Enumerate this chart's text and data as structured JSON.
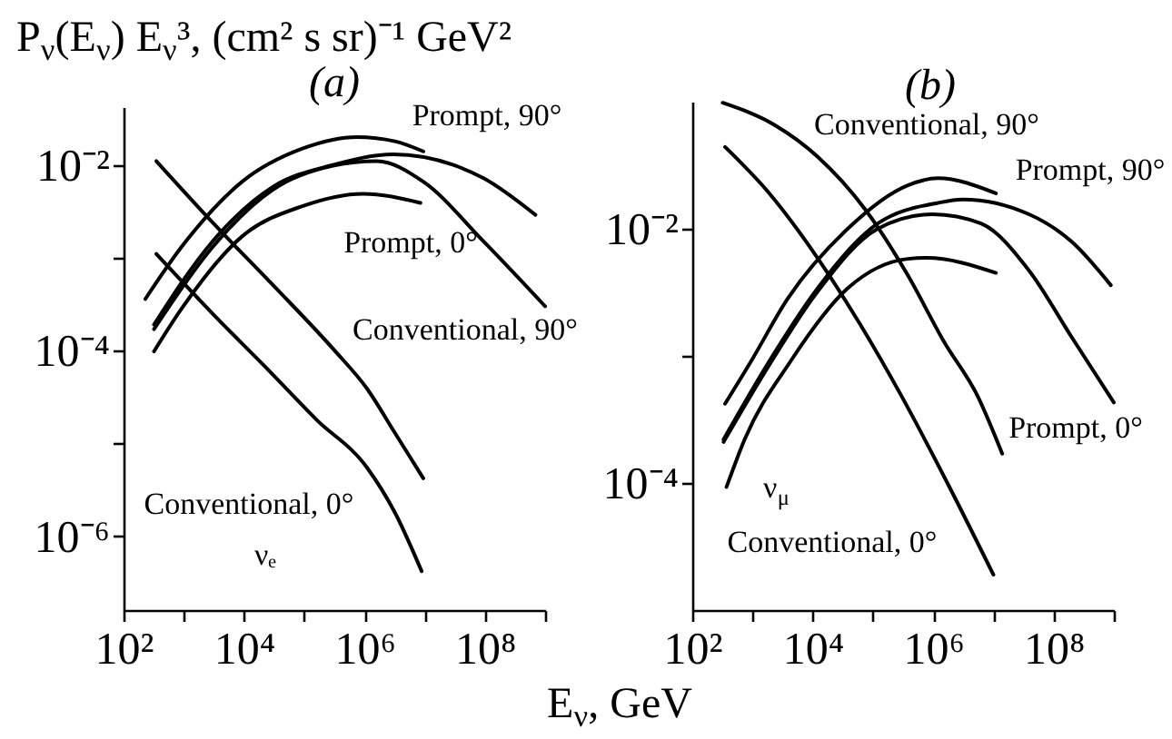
{
  "chart_data": [
    {
      "type": "line",
      "title": "(a)",
      "xlabel": "E$_{ν}$, GeV",
      "ylabel": "P$_{ν}$(E$_{ν}$) E$_{ν}$³, (cm² s sr)⁻¹ GeV²",
      "log": "xy",
      "xlim": [
        100,
        1000000000
      ],
      "ylim": [
        1.6e-07,
        0.042
      ],
      "xticks": [
        {
          "value": 100,
          "label": "10²"
        },
        {
          "value": 1000,
          "label": null
        },
        {
          "value": 10000,
          "label": "10⁴"
        },
        {
          "value": 100000,
          "label": null
        },
        {
          "value": 1000000,
          "label": "10⁶"
        },
        {
          "value": 10000000,
          "label": null
        },
        {
          "value": 100000000,
          "label": "10⁸"
        },
        {
          "value": 1000000000,
          "label": null
        }
      ],
      "yticks": [
        {
          "value": 0.01,
          "label": "10⁻²"
        },
        {
          "value": 0.001,
          "label": null
        },
        {
          "value": 0.0001,
          "label": "10⁻⁴"
        },
        {
          "value": 1e-05,
          "label": null
        },
        {
          "value": 1e-06,
          "label": "10⁻⁶"
        }
      ],
      "series": [
        {
          "color": "#000000",
          "x": [
            350,
            3200,
            32000,
            320000,
            1100000,
            3200000,
            9500000
          ],
          "values": [
            0.011,
            0.0023,
            0.00049,
            0.0001,
            3.9e-05,
            1.3e-05,
            4.2e-06
          ]
        },
        {
          "color": "#000000",
          "x": [
            350,
            3200,
            23000,
            160000,
            1100000,
            3200000,
            8900000
          ],
          "values": [
            0.0011,
            0.00024,
            6.6e-05,
            1.8e-05,
            5.5e-06,
            1.8e-06,
            4.2e-07
          ]
        },
        {
          "color": "#000000",
          "x": [
            230,
            910,
            9300,
            93000,
            760000,
            3200000,
            9500000
          ],
          "values": [
            0.00036,
            0.0013,
            0.0066,
            0.015,
            0.02,
            0.018,
            0.014
          ]
        },
        {
          "color": "#000000",
          "x": [
            320,
            3000,
            30000,
            300000,
            3000000,
            30000000,
            95000000,
            690000000
          ],
          "values": [
            0.00019,
            0.0015,
            0.0058,
            0.01,
            0.013,
            0.01,
            0.0072,
            0.0029
          ]
        },
        {
          "color": "#000000",
          "x": [
            320,
            3000,
            30000,
            300000,
            1600000,
            9500000,
            95000000,
            1000000000
          ],
          "values": [
            0.00017,
            0.0013,
            0.0054,
            0.0098,
            0.011,
            0.0066,
            0.0015,
            0.0003
          ]
        },
        {
          "color": "#000000",
          "x": [
            320,
            910,
            9300,
            93000,
            950000,
            8500000
          ],
          "values": [
            9.8e-05,
            0.00028,
            0.0017,
            0.0036,
            0.0049,
            0.0039
          ]
        }
      ],
      "annotations": [
        "Prompt, 90°",
        "Prompt, 0°",
        "Conventional, 90°",
        "Conventional, 0°",
        "νₑ"
      ]
    },
    {
      "type": "line",
      "title": "(b)",
      "log": "xy",
      "xlim": [
        100,
        1000000000
      ],
      "ylim": [
        1e-05,
        0.1
      ],
      "xticks": [
        {
          "value": 100,
          "label": "10²"
        },
        {
          "value": 1000,
          "label": null
        },
        {
          "value": 10000,
          "label": "10⁴"
        },
        {
          "value": 100000,
          "label": null
        },
        {
          "value": 1000000,
          "label": "10⁶"
        },
        {
          "value": 10000000,
          "label": null
        },
        {
          "value": 100000000,
          "label": "10⁸"
        },
        {
          "value": 1000000000,
          "label": null
        }
      ],
      "yticks": [
        {
          "value": 0.01,
          "label": "10⁻²"
        },
        {
          "value": 0.001,
          "label": null
        },
        {
          "value": 0.0001,
          "label": "10⁻⁴"
        }
      ],
      "series": [
        {
          "color": "#000000",
          "x": [
            320,
            2400,
            12000,
            76000,
            380000,
            1500000,
            5500000,
            14000000
          ],
          "values": [
            0.098,
            0.065,
            0.037,
            0.014,
            0.0043,
            0.0013,
            0.00048,
            0.00017
          ]
        },
        {
          "color": "#000000",
          "x": [
            350,
            1900,
            12000,
            60000,
            300000,
            2000000,
            10000000
          ],
          "values": [
            0.044,
            0.019,
            0.0059,
            0.0018,
            0.00048,
            8.7e-05,
            1.9e-05
          ]
        },
        {
          "color": "#000000",
          "x": [
            350,
            950,
            3800,
            38000,
            380000,
            1200000,
            11000000
          ],
          "values": [
            0.00042,
            0.00091,
            0.0028,
            0.01,
            0.022,
            0.025,
            0.019
          ]
        },
        {
          "color": "#000000",
          "x": [
            330,
            1900,
            12000,
            120000,
            1200000,
            3100000,
            39000000,
            200000000,
            890000000
          ],
          "values": [
            0.00022,
            0.00091,
            0.0034,
            0.011,
            0.016,
            0.017,
            0.013,
            0.0079,
            0.0036
          ]
        },
        {
          "color": "#000000",
          "x": [
            330,
            1900,
            12000,
            120000,
            980000,
            6200000,
            39000000,
            200000000,
            1000000000
          ],
          "values": [
            0.00021,
            0.00085,
            0.0032,
            0.01,
            0.013,
            0.011,
            0.0047,
            0.0014,
            0.00043
          ]
        },
        {
          "color": "#000000",
          "x": [
            370,
            740,
            4300,
            38000,
            380000,
            780000,
            11000000
          ],
          "values": [
            9.3e-05,
            0.00022,
            0.00091,
            0.0034,
            0.0058,
            0.0059,
            0.0045
          ]
        }
      ],
      "annotations": [
        "Conventional, 90°",
        "Prompt, 90°",
        "Prompt, 0°",
        "ν$_{μ}$",
        "Conventional, 0°"
      ]
    }
  ]
}
